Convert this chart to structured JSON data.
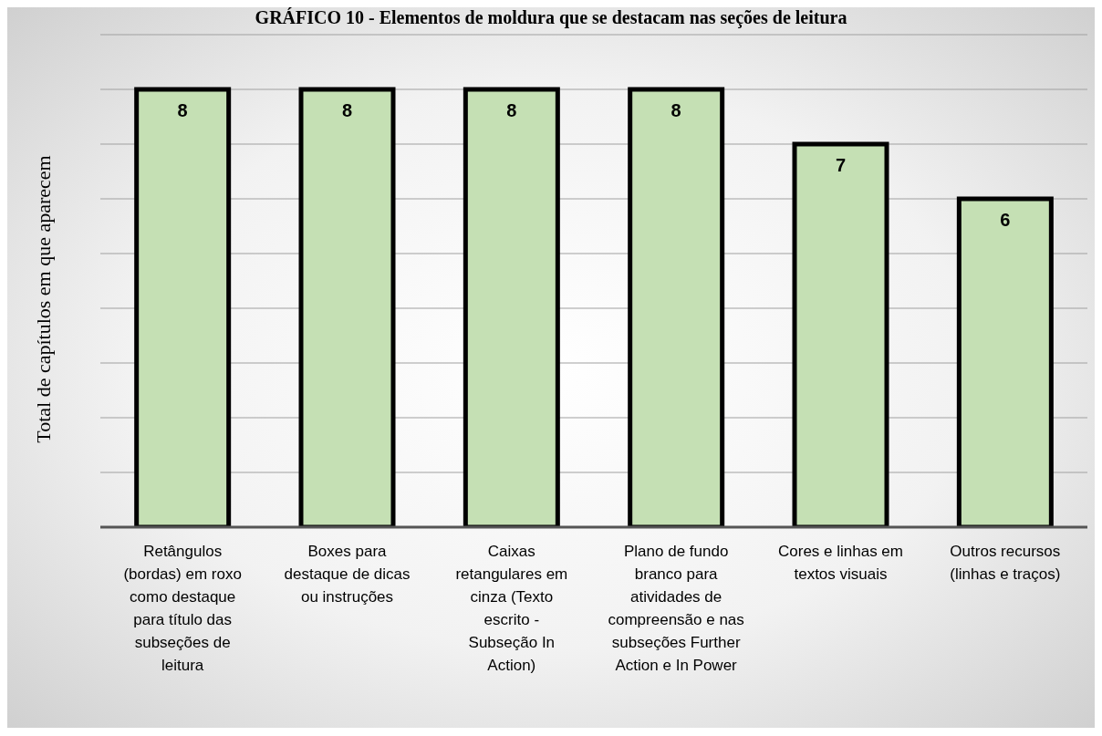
{
  "chart_data": {
    "type": "bar",
    "title": "GRÁFICO 10 - Elementos de moldura que se destacam nas seções de leitura",
    "ylabel": "Total  de capítulos em que aparecem",
    "categories": [
      "Retângulos (bordas) em roxo como destaque para título das subseções de leitura",
      "Boxes para destaque de dicas ou instruções",
      "Caixas retangulares em cinza (Texto escrito - Subseção In Action)",
      "Plano de fundo branco para atividades de compreensão e nas subseções Further Action e In Power",
      "Cores e linhas em textos visuais",
      "Outros recursos (linhas e traços)"
    ],
    "values": [
      8,
      8,
      8,
      8,
      7,
      6
    ],
    "color": "#c5e0b4",
    "data_labels": true,
    "grid": "y",
    "tick_labels": "x",
    "legend": false,
    "ylim": [
      0,
      9
    ]
  }
}
